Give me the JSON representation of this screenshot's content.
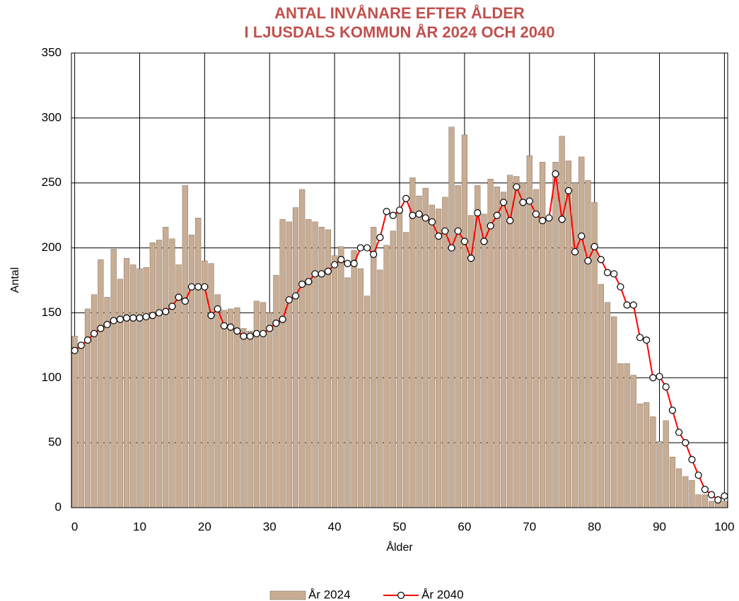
{
  "chart_data": {
    "type": "bar-line",
    "title": [
      "ANTAL INVÅNARE EFTER ÅLDER",
      "I LJUSDALS KOMMUN ÅR 2024 OCH 2040"
    ],
    "x_label": "Ålder",
    "y_label": "Antal",
    "x": [
      0,
      1,
      2,
      3,
      4,
      5,
      6,
      7,
      8,
      9,
      10,
      11,
      12,
      13,
      14,
      15,
      16,
      17,
      18,
      19,
      20,
      21,
      22,
      23,
      24,
      25,
      26,
      27,
      28,
      29,
      30,
      31,
      32,
      33,
      34,
      35,
      36,
      37,
      38,
      39,
      40,
      41,
      42,
      43,
      44,
      45,
      46,
      47,
      48,
      49,
      50,
      51,
      52,
      53,
      54,
      55,
      56,
      57,
      58,
      59,
      60,
      61,
      62,
      63,
      64,
      65,
      66,
      67,
      68,
      69,
      70,
      71,
      72,
      73,
      74,
      75,
      76,
      77,
      78,
      79,
      80,
      81,
      82,
      83,
      84,
      85,
      86,
      87,
      88,
      89,
      90,
      91,
      92,
      93,
      94,
      95,
      96,
      97,
      98,
      99,
      100
    ],
    "series": [
      {
        "name": "År 2024",
        "type": "bar",
        "color": "#c8ad94",
        "values": [
          132,
          126,
          153,
          164,
          191,
          162,
          199,
          176,
          192,
          187,
          184,
          185,
          204,
          206,
          216,
          207,
          187,
          248,
          210,
          223,
          190,
          188,
          164,
          152,
          153,
          154,
          138,
          136,
          159,
          158,
          150,
          179,
          222,
          220,
          231,
          245,
          222,
          220,
          216,
          214,
          194,
          201,
          177,
          198,
          184,
          163,
          216,
          183,
          202,
          213,
          228,
          212,
          254,
          240,
          246,
          233,
          230,
          239,
          293,
          248,
          287,
          225,
          248,
          226,
          253,
          247,
          243,
          256,
          255,
          250,
          271,
          245,
          266,
          224,
          266,
          286,
          267,
          250,
          270,
          252,
          235,
          172,
          158,
          147,
          111,
          111,
          102,
          80,
          81,
          70,
          51,
          67,
          39,
          30,
          24,
          21,
          10,
          10,
          5,
          5,
          5
        ]
      },
      {
        "name": "År 2040",
        "type": "line",
        "color": "#ff0000",
        "values": [
          121,
          125,
          129,
          134,
          138,
          141,
          144,
          145,
          146,
          146,
          146,
          147,
          148,
          150,
          151,
          155,
          162,
          159,
          170,
          170,
          170,
          148,
          153,
          140,
          139,
          136,
          132,
          132,
          134,
          134,
          138,
          142,
          145,
          160,
          163,
          172,
          174,
          180,
          180,
          182,
          187,
          191,
          188,
          188,
          200,
          200,
          195,
          208,
          228,
          225,
          229,
          238,
          225,
          226,
          223,
          220,
          209,
          213,
          200,
          213,
          205,
          192,
          227,
          205,
          217,
          225,
          235,
          221,
          247,
          235,
          236,
          226,
          221,
          223,
          257,
          222,
          244,
          197,
          209,
          190,
          201,
          191,
          181,
          180,
          170,
          156,
          156,
          131,
          129,
          100,
          101,
          93,
          75,
          58,
          50,
          37,
          25,
          14,
          10,
          6,
          9
        ]
      }
    ],
    "xlim": [
      -0.5,
      100.5
    ],
    "xticks": [
      0,
      10,
      20,
      30,
      40,
      50,
      60,
      70,
      80,
      90,
      100
    ],
    "ylim": [
      0,
      350
    ],
    "yticks": [
      0,
      50,
      100,
      150,
      200,
      250,
      300,
      350
    ],
    "grid": true,
    "legend": "bottom"
  }
}
